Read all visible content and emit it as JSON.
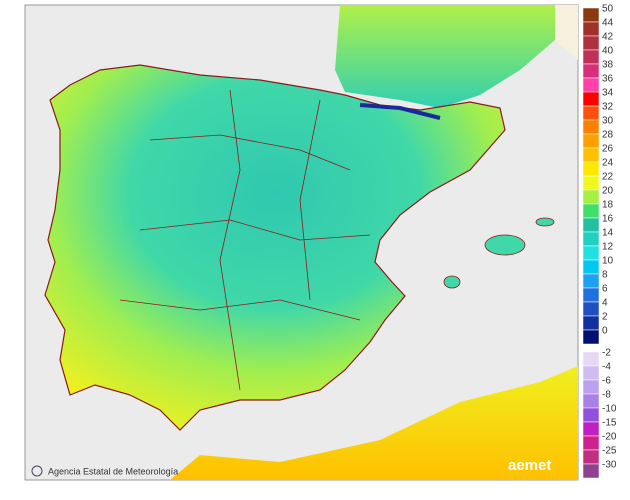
{
  "map": {
    "credit": "Agencia Estatal de Meteorología",
    "logo": "aemet"
  },
  "legend": {
    "upper": [
      {
        "label": 50,
        "color": "#8b3a10"
      },
      {
        "label": 44,
        "color": "#a03028"
      },
      {
        "label": 42,
        "color": "#b03040"
      },
      {
        "label": 40,
        "color": "#c03058"
      },
      {
        "label": 38,
        "color": "#d83078"
      },
      {
        "label": 36,
        "color": "#ff40a8"
      },
      {
        "label": 34,
        "color": "#ff0000"
      },
      {
        "label": 32,
        "color": "#ff5010"
      },
      {
        "label": 30,
        "color": "#ff8000"
      },
      {
        "label": 28,
        "color": "#ffa000"
      },
      {
        "label": 26,
        "color": "#ffc000"
      },
      {
        "label": 24,
        "color": "#ffe800"
      },
      {
        "label": 22,
        "color": "#f0f820"
      },
      {
        "label": 20,
        "color": "#a8f040"
      },
      {
        "label": 18,
        "color": "#40e068"
      },
      {
        "label": 16,
        "color": "#20c0a0"
      },
      {
        "label": 14,
        "color": "#20d0c0"
      },
      {
        "label": 12,
        "color": "#20e0e0"
      },
      {
        "label": 10,
        "color": "#00c8f0"
      },
      {
        "label": 8,
        "color": "#20a0f0"
      },
      {
        "label": 6,
        "color": "#2070e0"
      },
      {
        "label": 4,
        "color": "#2050c0"
      },
      {
        "label": 2,
        "color": "#1030a0"
      },
      {
        "label": 0,
        "color": "#001070"
      }
    ],
    "lower": [
      {
        "label": -2,
        "color": "#e4d8f4"
      },
      {
        "label": -4,
        "color": "#d0bcf0"
      },
      {
        "label": -6,
        "color": "#bca0f0"
      },
      {
        "label": -8,
        "color": "#a880e8"
      },
      {
        "label": -10,
        "color": "#9050e0"
      },
      {
        "label": -15,
        "color": "#c020c0"
      },
      {
        "label": -20,
        "color": "#d02090"
      },
      {
        "label": -25,
        "color": "#c03080"
      },
      {
        "label": -30,
        "color": "#904090"
      }
    ]
  }
}
